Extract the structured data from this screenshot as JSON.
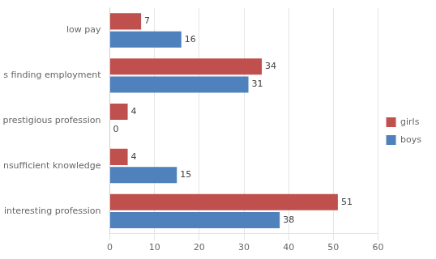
{
  "chart_data": {
    "type": "bar",
    "orientation": "horizontal",
    "categories": [
      "not an interesting profession",
      "insufficient knowledge",
      "not a prestigious profession",
      "difficulties finding employment",
      "low pay"
    ],
    "series": [
      {
        "name": "girls",
        "color": "#C0504D",
        "values": [
          51,
          4,
          4,
          34,
          7
        ]
      },
      {
        "name": "boys",
        "color": "#4F81BD",
        "values": [
          38,
          15,
          0,
          31,
          16
        ]
      }
    ],
    "xlim": [
      0,
      60
    ],
    "xticks": [
      0,
      10,
      20,
      30,
      40,
      50,
      60
    ],
    "grid": true,
    "legend": "right",
    "data_labels": true
  }
}
